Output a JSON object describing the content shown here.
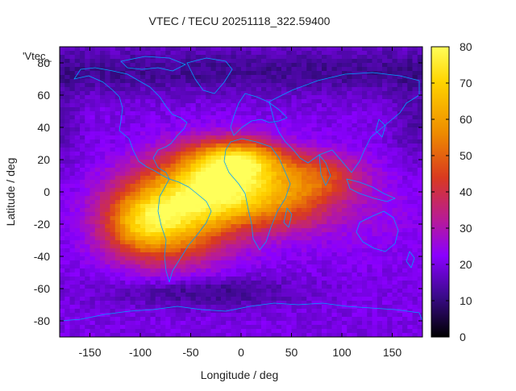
{
  "chart_data": {
    "type": "heatmap",
    "title": "VTEC / TECU 20251118_322.59400",
    "xlabel": "Longitude / deg",
    "ylabel": "Latitude / deg",
    "series_key": "'Vtec_",
    "xlim": [
      -180,
      180
    ],
    "ylim": [
      -90,
      90
    ],
    "x_ticks": [
      -150,
      -100,
      -50,
      0,
      50,
      100,
      150
    ],
    "y_ticks": [
      80,
      60,
      40,
      20,
      0,
      -20,
      -40,
      -60,
      -80
    ],
    "colorbar": {
      "min": 0,
      "max": 80,
      "ticks": [
        0,
        10,
        20,
        30,
        40,
        50,
        60,
        70,
        80
      ],
      "stops": [
        "#000000",
        "#3a0a8a",
        "#8a00ff",
        "#b71a9a",
        "#d93a1f",
        "#ee8a00",
        "#ffd400",
        "#ffff5a"
      ]
    },
    "grid": "2.5x5 deg cells (estimated)",
    "features": [
      {
        "name": "equatorial-anomaly-peak",
        "lon": -60,
        "lat": -15,
        "tec": 68
      },
      {
        "name": "equatorial-anomaly-peak",
        "lon": -20,
        "lat": 3,
        "tec": 72
      },
      {
        "name": "equatorial-anomaly-peak",
        "lon": -5,
        "lat": 20,
        "tec": 70
      },
      {
        "name": "background-high-lat",
        "lon": 0,
        "lat": 70,
        "tec": 15
      },
      {
        "name": "background-night",
        "lon": 150,
        "lat": 0,
        "tec": 22
      }
    ],
    "coastline_color": "#00a0ff"
  }
}
